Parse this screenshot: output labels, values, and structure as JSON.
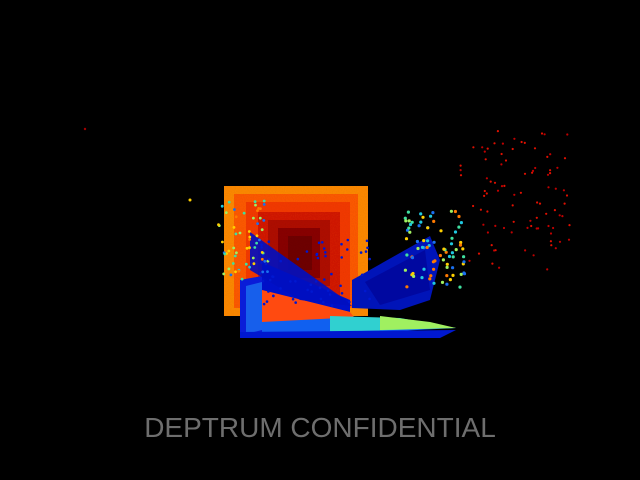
{
  "watermark": {
    "text": "DEPTRUM CONFIDENTIAL"
  },
  "colors": {
    "background": "#000000",
    "watermark": "#6e6e6e",
    "near_blue": "#0010c8",
    "mid_cyan": "#20c8e0",
    "mid_green": "#a0f060",
    "far_yellow": "#ffd000",
    "far_orange": "#ff7a00",
    "far_red": "#e01000",
    "deep_red": "#700000"
  },
  "scene": {
    "type": "depth point cloud",
    "colormap": "jet"
  }
}
